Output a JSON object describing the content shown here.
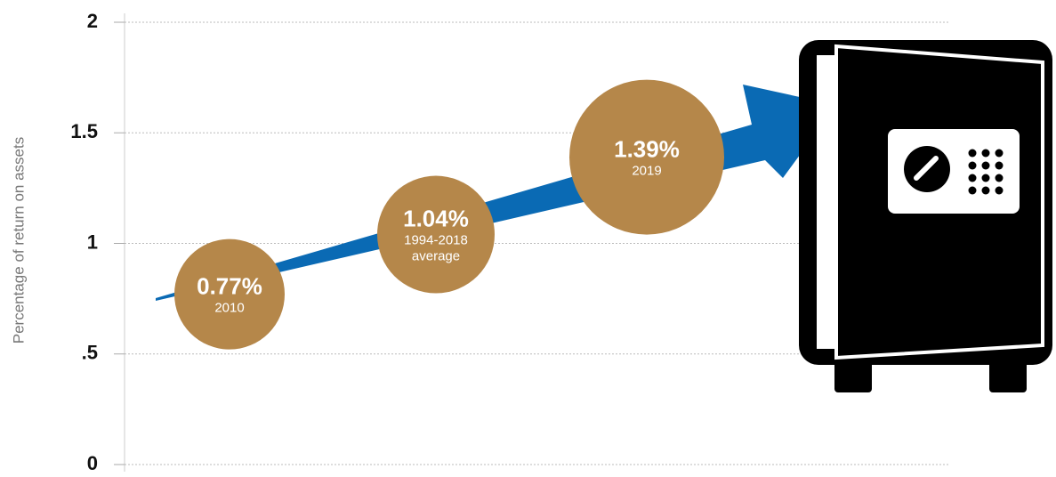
{
  "chart_data": {
    "type": "bubble-arrow",
    "y_label": "Percentage of return on assets",
    "categories": [
      "2010",
      "1994-2018 average",
      "2019"
    ],
    "values": [
      0.77,
      1.04,
      1.39
    ],
    "value_labels": [
      "0.77%",
      "1.04%",
      "1.39%"
    ],
    "color": "#b5874a",
    "arrow_color": "#0a6ab4",
    "ylim": [
      0,
      2
    ],
    "yticks": [
      0,
      {
        "value": 0.5,
        "label": ".5"
      },
      1,
      1.5,
      2
    ],
    "grid": true
  }
}
